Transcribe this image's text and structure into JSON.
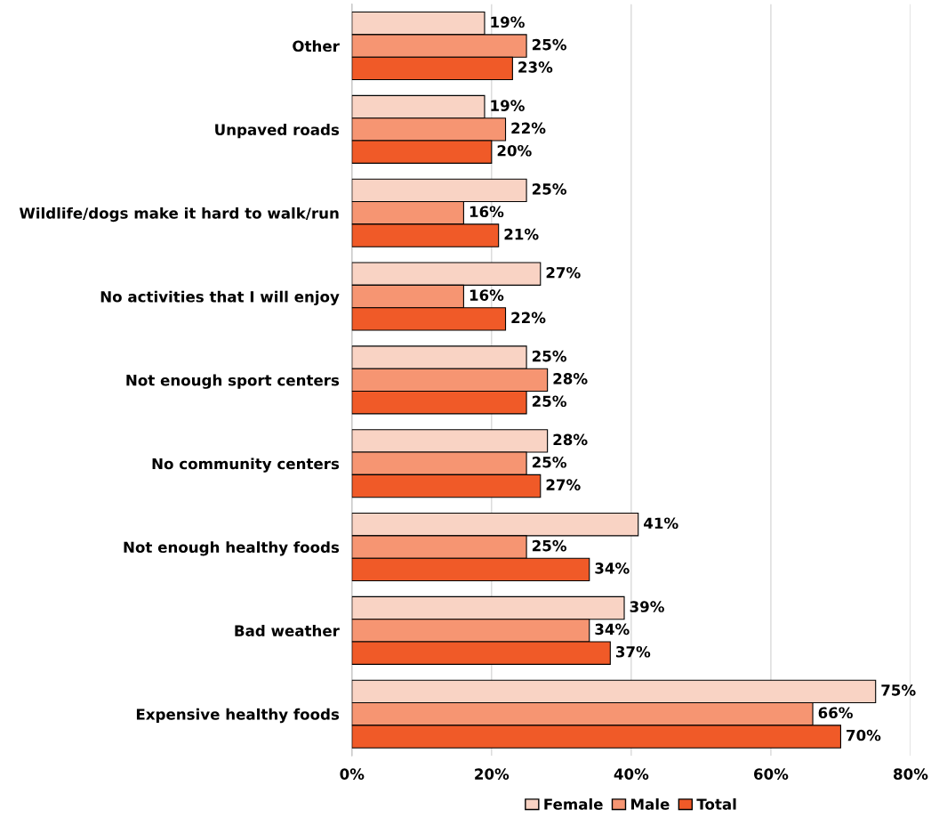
{
  "chart_data": {
    "type": "bar",
    "orientation": "horizontal",
    "categories": [
      "Other",
      "Unpaved roads",
      "Wildlife/dogs make it hard to walk/run",
      "No activities that I will enjoy",
      "Not enough sport centers",
      "No community centers",
      "Not enough healthy foods",
      "Bad weather",
      "Expensive healthy foods"
    ],
    "series": [
      {
        "name": "Female",
        "color": "#f9d3c4",
        "values": [
          19,
          19,
          25,
          27,
          25,
          28,
          41,
          39,
          75
        ],
        "value_labels": [
          "19%",
          "19%",
          "25%",
          "27%",
          "25%",
          "28%",
          "41%",
          "39%",
          "75%"
        ]
      },
      {
        "name": "Male",
        "color": "#f69572",
        "values": [
          25,
          22,
          16,
          16,
          28,
          25,
          25,
          34,
          66
        ],
        "value_labels": [
          "25%",
          "22%",
          "16%",
          "16%",
          "28%",
          "25%",
          "25%",
          "34%",
          "66%"
        ]
      },
      {
        "name": "Total",
        "color": "#f05a28",
        "values": [
          23,
          20,
          21,
          22,
          25,
          27,
          34,
          37,
          70
        ],
        "value_labels": [
          "23%",
          "20%",
          "21%",
          "22%",
          "25%",
          "27%",
          "34%",
          "37%",
          "70%"
        ]
      }
    ],
    "xlim": [
      0,
      80
    ],
    "xticks": [
      {
        "value": 0,
        "label": "0%"
      },
      {
        "value": 20,
        "label": "20%"
      },
      {
        "value": 40,
        "label": "40%"
      },
      {
        "value": 60,
        "label": "60%"
      },
      {
        "value": 80,
        "label": "80%"
      }
    ],
    "grid": "x",
    "legend": "bottom"
  }
}
